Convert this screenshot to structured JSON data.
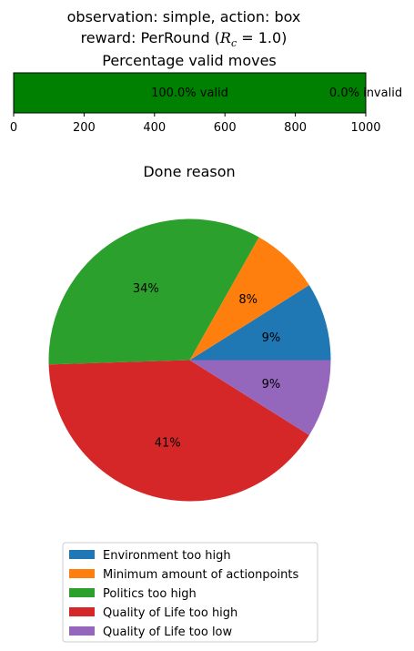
{
  "figure_title_line1": "observation: simple, action: box",
  "figure_title_line2_prefix": "reward: PerRound (",
  "figure_title_line2_math": "R",
  "figure_title_line2_sub": "c",
  "figure_title_line2_suffix": " = 1.0)",
  "chart_data": [
    {
      "type": "bar",
      "orientation": "horizontal-stacked",
      "title": "Percentage valid moves",
      "xlim": [
        0,
        1000
      ],
      "xticks": [
        "0",
        "200",
        "400",
        "600",
        "800",
        "1000"
      ],
      "series": [
        {
          "name": "valid",
          "value": 1000,
          "label": "100.0% valid",
          "color": "#008000"
        },
        {
          "name": "invalid",
          "value": 0,
          "label": "0.0% invalid",
          "color": "#ff0000"
        }
      ]
    },
    {
      "type": "pie",
      "title": "Done reason",
      "slices": [
        {
          "name": "Environment too high",
          "value": 9,
          "pct_label": "9%",
          "color": "#1f77b4"
        },
        {
          "name": "Minimum amount of actionpoints",
          "value": 8,
          "pct_label": "8%",
          "color": "#ff7f0e"
        },
        {
          "name": "Politics too high",
          "value": 34,
          "pct_label": "34%",
          "color": "#2ca02c"
        },
        {
          "name": "Quality of Life too high",
          "value": 41,
          "pct_label": "41%",
          "color": "#d62728"
        },
        {
          "name": "Quality of Life too low",
          "value": 9,
          "pct_label": "9%",
          "color": "#9467bd"
        }
      ],
      "legend_placement": "bottom-center"
    }
  ]
}
